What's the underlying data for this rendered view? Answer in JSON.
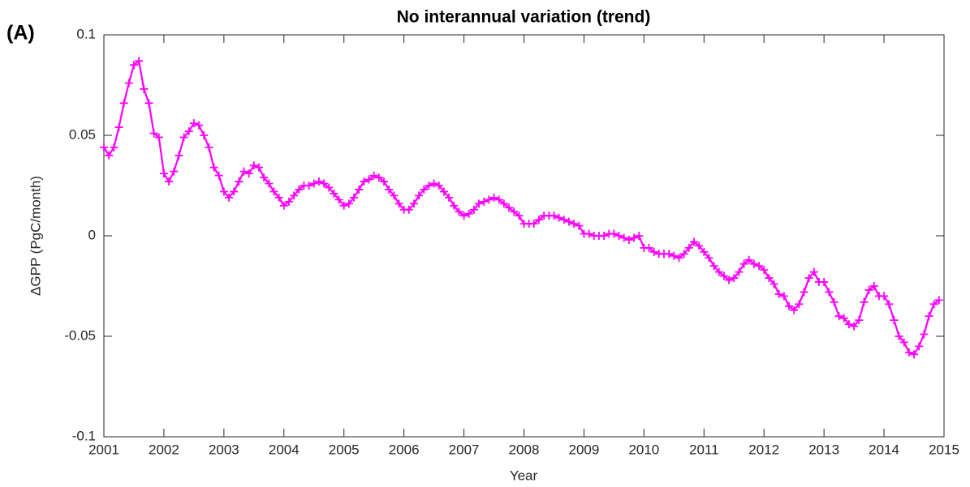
{
  "chart_data": {
    "type": "line",
    "panel_label": "(A)",
    "title": "No interannual variation (trend)",
    "x_label": "Year",
    "y_label": "ΔGPP (PgC/month)",
    "color": "#ff00ff",
    "marker": "+",
    "xlim": [
      2001,
      2015
    ],
    "xticks": [
      2001,
      2002,
      2003,
      2004,
      2005,
      2006,
      2007,
      2008,
      2009,
      2010,
      2011,
      2012,
      2013,
      2014,
      2015
    ],
    "ylim": [
      -0.1,
      0.1
    ],
    "yticks": [
      -0.1,
      -0.05,
      0,
      0.05,
      0.1
    ],
    "grid": false,
    "x": [
      2001,
      2001.0833,
      2001.1667,
      2001.25,
      2001.3333,
      2001.4167,
      2001.5,
      2001.5833,
      2001.6667,
      2001.75,
      2001.8333,
      2001.9167,
      2002,
      2002.0833,
      2002.1667,
      2002.25,
      2002.3333,
      2002.4167,
      2002.5,
      2002.5833,
      2002.6667,
      2002.75,
      2002.8333,
      2002.9167,
      2003,
      2003.0833,
      2003.1667,
      2003.25,
      2003.3333,
      2003.4167,
      2003.5,
      2003.5833,
      2003.6667,
      2003.75,
      2003.8333,
      2003.9167,
      2004,
      2004.0833,
      2004.1667,
      2004.25,
      2004.3333,
      2004.4167,
      2004.5,
      2004.5833,
      2004.6667,
      2004.75,
      2004.8333,
      2004.9167,
      2005,
      2005.0833,
      2005.1667,
      2005.25,
      2005.3333,
      2005.4167,
      2005.5,
      2005.5833,
      2005.6667,
      2005.75,
      2005.8333,
      2005.9167,
      2006,
      2006.0833,
      2006.1667,
      2006.25,
      2006.3333,
      2006.4167,
      2006.5,
      2006.5833,
      2006.6667,
      2006.75,
      2006.8333,
      2006.9167,
      2007,
      2007.0833,
      2007.1667,
      2007.25,
      2007.3333,
      2007.4167,
      2007.5,
      2007.5833,
      2007.6667,
      2007.75,
      2007.8333,
      2007.9167,
      2008,
      2008.0833,
      2008.1667,
      2008.25,
      2008.3333,
      2008.4167,
      2008.5,
      2008.5833,
      2008.6667,
      2008.75,
      2008.8333,
      2008.9167,
      2009,
      2009.0833,
      2009.1667,
      2009.25,
      2009.3333,
      2009.4167,
      2009.5,
      2009.5833,
      2009.6667,
      2009.75,
      2009.8333,
      2009.9167,
      2010,
      2010.0833,
      2010.1667,
      2010.25,
      2010.3333,
      2010.4167,
      2010.5,
      2010.5833,
      2010.6667,
      2010.75,
      2010.8333,
      2010.9167,
      2011,
      2011.0833,
      2011.1667,
      2011.25,
      2011.3333,
      2011.4167,
      2011.5,
      2011.5833,
      2011.6667,
      2011.75,
      2011.8333,
      2011.9167,
      2012,
      2012.0833,
      2012.1667,
      2012.25,
      2012.3333,
      2012.4167,
      2012.5,
      2012.5833,
      2012.6667,
      2012.75,
      2012.8333,
      2012.9167,
      2013,
      2013.0833,
      2013.1667,
      2013.25,
      2013.3333,
      2013.4167,
      2013.5,
      2013.5833,
      2013.6667,
      2013.75,
      2013.8333,
      2013.9167,
      2014,
      2014.0833,
      2014.1667,
      2014.25,
      2014.3333,
      2014.4167,
      2014.5,
      2014.5833,
      2014.6667,
      2014.75,
      2014.8333,
      2014.9167
    ],
    "values": [
      0.044,
      0.04,
      0.044,
      0.054,
      0.066,
      0.076,
      0.085,
      0.087,
      0.073,
      0.066,
      0.051,
      0.049,
      0.031,
      0.027,
      0.032,
      0.04,
      0.049,
      0.052,
      0.056,
      0.055,
      0.05,
      0.044,
      0.034,
      0.03,
      0.022,
      0.019,
      0.022,
      0.027,
      0.032,
      0.031,
      0.035,
      0.034,
      0.029,
      0.026,
      0.022,
      0.019,
      0.015,
      0.017,
      0.02,
      0.023,
      0.025,
      0.025,
      0.026,
      0.027,
      0.026,
      0.024,
      0.021,
      0.018,
      0.015,
      0.016,
      0.019,
      0.023,
      0.027,
      0.028,
      0.03,
      0.029,
      0.027,
      0.023,
      0.02,
      0.016,
      0.013,
      0.013,
      0.016,
      0.02,
      0.023,
      0.025,
      0.026,
      0.025,
      0.022,
      0.019,
      0.015,
      0.012,
      0.01,
      0.011,
      0.013,
      0.016,
      0.017,
      0.018,
      0.019,
      0.018,
      0.016,
      0.014,
      0.012,
      0.01,
      0.006,
      0.006,
      0.006,
      0.008,
      0.01,
      0.01,
      0.01,
      0.009,
      0.008,
      0.007,
      0.006,
      0.005,
      0.001,
      0.001,
      0.0,
      0.0,
      0.0,
      0.001,
      0.001,
      0.0,
      -0.001,
      -0.002,
      -0.001,
      0.0,
      -0.006,
      -0.006,
      -0.008,
      -0.009,
      -0.009,
      -0.009,
      -0.01,
      -0.011,
      -0.009,
      -0.006,
      -0.003,
      -0.005,
      -0.008,
      -0.011,
      -0.015,
      -0.018,
      -0.02,
      -0.022,
      -0.021,
      -0.018,
      -0.014,
      -0.012,
      -0.014,
      -0.015,
      -0.017,
      -0.021,
      -0.024,
      -0.029,
      -0.03,
      -0.035,
      -0.037,
      -0.034,
      -0.028,
      -0.021,
      -0.018,
      -0.023,
      -0.023,
      -0.028,
      -0.033,
      -0.04,
      -0.041,
      -0.044,
      -0.045,
      -0.042,
      -0.033,
      -0.027,
      -0.025,
      -0.03,
      -0.03,
      -0.034,
      -0.042,
      -0.05,
      -0.053,
      -0.058,
      -0.059,
      -0.055,
      -0.049,
      -0.04,
      -0.034,
      -0.032
    ]
  }
}
